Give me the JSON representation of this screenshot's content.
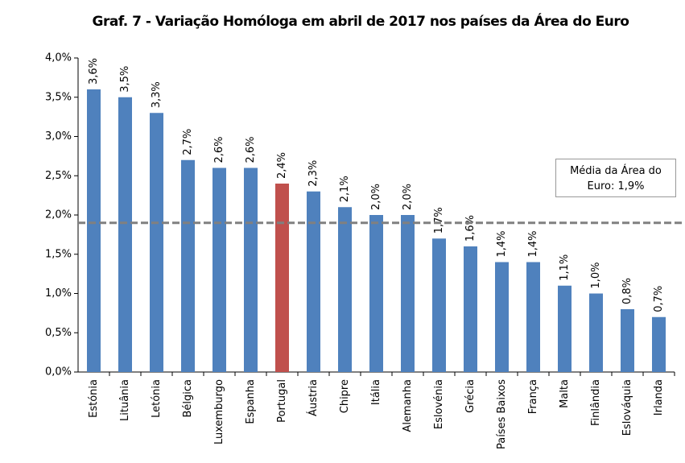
{
  "chart_data": {
    "type": "bar",
    "title": "Graf. 7 - Variação Homóloga em abril de 2017 nos países da Área do Euro",
    "categories": [
      "Estónia",
      "Lituânia",
      "Letónia",
      "Bélgica",
      "Luxemburgo",
      "Espanha",
      "Portugal",
      "Áustria",
      "Chipre",
      "Itália",
      "Alemanha",
      "Eslovénia",
      "Grécia",
      "Países Baixos",
      "França",
      "Malta",
      "Finlândia",
      "Eslováquia",
      "Irlanda"
    ],
    "values": [
      3.6,
      3.5,
      3.3,
      2.7,
      2.6,
      2.6,
      2.4,
      2.3,
      2.1,
      2.0,
      2.0,
      1.7,
      1.6,
      1.4,
      1.4,
      1.1,
      1.0,
      0.8,
      0.7
    ],
    "value_labels": [
      "3,6%",
      "3,5%",
      "3,3%",
      "2,7%",
      "2,6%",
      "2,6%",
      "2,4%",
      "2,3%",
      "2,1%",
      "2,0%",
      "2,0%",
      "1,7%",
      "1,6%",
      "1,4%",
      "1,4%",
      "1,1%",
      "1,0%",
      "0,8%",
      "0,7%"
    ],
    "colors": [
      "#4f81bd",
      "#4f81bd",
      "#4f81bd",
      "#4f81bd",
      "#4f81bd",
      "#4f81bd",
      "#c0504d",
      "#4f81bd",
      "#4f81bd",
      "#4f81bd",
      "#4f81bd",
      "#4f81bd",
      "#4f81bd",
      "#4f81bd",
      "#4f81bd",
      "#4f81bd",
      "#4f81bd",
      "#4f81bd",
      "#4f81bd"
    ],
    "ylim": [
      0,
      4.0
    ],
    "yticks": [
      {
        "value": 0,
        "label": "0,0%"
      },
      {
        "value": 0.5,
        "label": "0,5%"
      },
      {
        "value": 1.0,
        "label": "1,0%"
      },
      {
        "value": 1.5,
        "label": "1,5%"
      },
      {
        "value": 2.0,
        "label": "2,0%"
      },
      {
        "value": 2.5,
        "label": "2,5%"
      },
      {
        "value": 3.0,
        "label": "3,0%"
      },
      {
        "value": 3.5,
        "label": "3,5%"
      },
      {
        "value": 4.0,
        "label": "4,0%"
      }
    ],
    "grid": false,
    "reference_line": {
      "value": 1.9,
      "label": "Média da Área do Euro: 1,9%",
      "color": "#808080"
    }
  }
}
